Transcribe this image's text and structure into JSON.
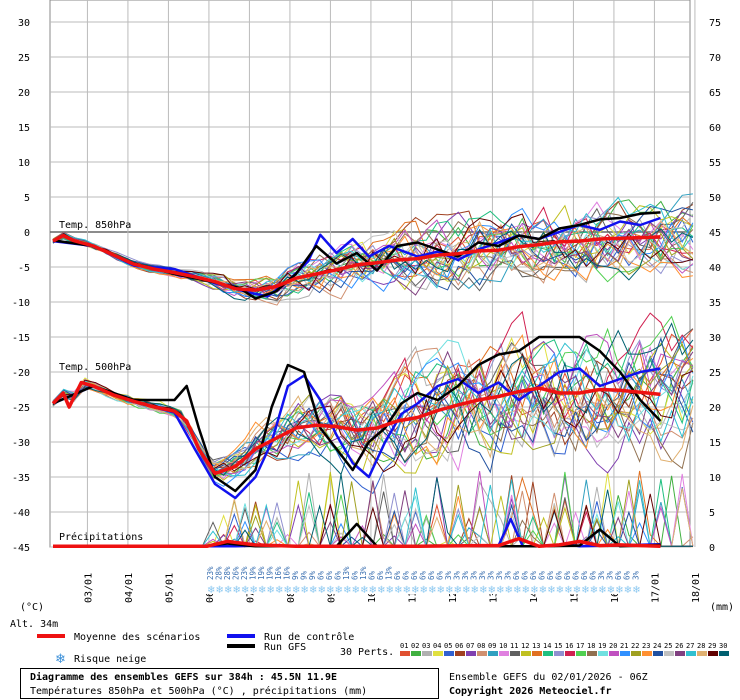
{
  "chart_data": {
    "type": "line",
    "title": "Diagramme des ensembles GEFS sur 384h : 45.5N 11.9E",
    "subtitle": "Températures 850hPa et 500hPa (°C) , précipitations (mm)",
    "run_label": "Ensemble GEFS du 02/01/2026 - 06Z",
    "copyright": "Copyright 2026 Meteociel.fr",
    "left_axis_unit": "(°C)",
    "right_axis_unit": "(mm)",
    "altitude": "Alt. 34m",
    "left_ticks": [
      30,
      25,
      20,
      15,
      10,
      5,
      0,
      -5,
      -10,
      -15,
      -20,
      -25,
      -30,
      -35,
      -40,
      -45
    ],
    "right_ticks": [
      75,
      70,
      65,
      60,
      55,
      50,
      45,
      40,
      35,
      30,
      25,
      20,
      15,
      10,
      5,
      0
    ],
    "x_labels": [
      "03/01",
      "04/01",
      "05/01",
      "06/01",
      "07/01",
      "08/01",
      "09/01",
      "10/01",
      "11/01",
      "12/01",
      "13/01",
      "14/01",
      "15/01",
      "16/01",
      "17/01",
      "18/01"
    ],
    "section_labels": {
      "t850": "Temp. 850hPa",
      "t500": "Temp. 500hPa",
      "precip": "Précipitations"
    },
    "snow_risk_percent": [
      "23%",
      "28%",
      "28%",
      "26%",
      "23%",
      "19%",
      "19%",
      "19%",
      "16%",
      "16%",
      "9%",
      "9%",
      "9%",
      "6%",
      "6%",
      "6%",
      "13%",
      "6%",
      "13%",
      "6%",
      "6%",
      "13%",
      "6%",
      "6%",
      "6%",
      "6%",
      "6%",
      "6%",
      "3%",
      "3%",
      "3%",
      "3%",
      "3%",
      "3%",
      "3%",
      "3%",
      "6%",
      "6%",
      "6%",
      "6%",
      "6%",
      "6%",
      "6%",
      "6%",
      "6%",
      "6%",
      "3%",
      "3%",
      "6%",
      "6%",
      "3%"
    ],
    "legend": {
      "mean": "Moyenne des scénarios",
      "control": "Run de contrôle",
      "gfs": "Run GFS",
      "snow": "Risque neige",
      "perts": "30 Perts."
    },
    "mean_t850": [
      [
        0,
        -1.3
      ],
      [
        0.25,
        -0.5
      ],
      [
        0.5,
        -1.2
      ],
      [
        1,
        -2
      ],
      [
        1.5,
        -3.3
      ],
      [
        2,
        -4.6
      ],
      [
        2.5,
        -5.3
      ],
      [
        3,
        -5.8
      ],
      [
        3.5,
        -6.4
      ],
      [
        4,
        -7.1
      ],
      [
        4.5,
        -8.1
      ],
      [
        5,
        -8.3
      ],
      [
        5.5,
        -7.8
      ],
      [
        6,
        -6.6
      ],
      [
        6.5,
        -6.0
      ],
      [
        7,
        -5.4
      ],
      [
        7.5,
        -4.7
      ],
      [
        8,
        -4.4
      ],
      [
        8.5,
        -4.0
      ],
      [
        9,
        -3.8
      ],
      [
        9.5,
        -3.3
      ],
      [
        10,
        -3.1
      ],
      [
        10.5,
        -2.7
      ],
      [
        11,
        -2.6
      ],
      [
        11.5,
        -2.1
      ],
      [
        12,
        -1.8
      ],
      [
        12.5,
        -1.4
      ],
      [
        13,
        -1.3
      ],
      [
        13.5,
        -1.0
      ],
      [
        14,
        -0.9
      ],
      [
        14.5,
        -0.8
      ],
      [
        15,
        -0.7
      ]
    ],
    "mean_t500": [
      [
        0,
        -24.5
      ],
      [
        0.25,
        -23.0
      ],
      [
        0.4,
        -25.0
      ],
      [
        0.7,
        -21.5
      ],
      [
        1,
        -22.0
      ],
      [
        1.5,
        -23.3
      ],
      [
        2,
        -24.2
      ],
      [
        2.5,
        -25.0
      ],
      [
        3,
        -25.6
      ],
      [
        3.3,
        -27
      ],
      [
        3.6,
        -31
      ],
      [
        4,
        -34.5
      ],
      [
        4.5,
        -33.5
      ],
      [
        5,
        -31.0
      ],
      [
        5.5,
        -29.5
      ],
      [
        6,
        -28.0
      ],
      [
        6.5,
        -27.6
      ],
      [
        7,
        -27.8
      ],
      [
        7.5,
        -28.3
      ],
      [
        8,
        -28.0
      ],
      [
        8.5,
        -27.0
      ],
      [
        9,
        -26.5
      ],
      [
        9.5,
        -25.5
      ],
      [
        10,
        -24.7
      ],
      [
        10.5,
        -24.0
      ],
      [
        11,
        -23.5
      ],
      [
        11.5,
        -22.8
      ],
      [
        12,
        -22.3
      ],
      [
        12.5,
        -23.0
      ],
      [
        13,
        -23.0
      ],
      [
        13.5,
        -22.5
      ],
      [
        14,
        -22.6
      ],
      [
        14.5,
        -22.9
      ],
      [
        15,
        -23.2
      ]
    ],
    "mean_precip": [
      [
        0,
        0.1
      ],
      [
        3.8,
        0.1
      ],
      [
        4.3,
        0.8
      ],
      [
        5,
        0.3
      ],
      [
        6,
        0.1
      ],
      [
        8,
        0.1
      ],
      [
        9,
        0.1
      ],
      [
        10.5,
        0.2
      ],
      [
        11,
        0.2
      ],
      [
        11.5,
        1.2
      ],
      [
        12,
        0.1
      ],
      [
        12.5,
        0.3
      ],
      [
        13,
        0.8
      ],
      [
        13.5,
        0.2
      ],
      [
        14,
        0.3
      ],
      [
        15,
        0.1
      ]
    ],
    "control_t850": [
      [
        0,
        -1.3
      ],
      [
        1,
        -2
      ],
      [
        2,
        -4.8
      ],
      [
        3,
        -5.3
      ],
      [
        4,
        -7.3
      ],
      [
        4.8,
        -8.6
      ],
      [
        5.3,
        -9.2
      ],
      [
        5.8,
        -7.0
      ],
      [
        6.3,
        -4.2
      ],
      [
        6.6,
        -0.4
      ],
      [
        7,
        -3.0
      ],
      [
        7.4,
        -1.0
      ],
      [
        7.8,
        -3.5
      ],
      [
        8.3,
        -2.0
      ],
      [
        9,
        -3.5
      ],
      [
        9.5,
        -2.8
      ],
      [
        10,
        -4.0
      ],
      [
        10.5,
        -2.5
      ],
      [
        11,
        -1.5
      ],
      [
        11.5,
        -0.5
      ],
      [
        12,
        -1.0
      ],
      [
        12.5,
        0.0
      ],
      [
        13,
        1.0
      ],
      [
        13.5,
        0.3
      ],
      [
        14,
        1.5
      ],
      [
        14.5,
        1.0
      ],
      [
        15,
        2.0
      ]
    ],
    "control_t500": [
      [
        0,
        -24.5
      ],
      [
        1,
        -22
      ],
      [
        2,
        -24.3
      ],
      [
        3,
        -25.8
      ],
      [
        3.5,
        -31
      ],
      [
        4,
        -36
      ],
      [
        4.5,
        -38
      ],
      [
        5,
        -35
      ],
      [
        5.4,
        -30
      ],
      [
        5.8,
        -22
      ],
      [
        6.2,
        -20.5
      ],
      [
        6.6,
        -24
      ],
      [
        7,
        -29
      ],
      [
        7.4,
        -33
      ],
      [
        7.8,
        -35
      ],
      [
        8.2,
        -30
      ],
      [
        8.6,
        -26
      ],
      [
        9,
        -24.5
      ],
      [
        9.5,
        -22
      ],
      [
        10,
        -21.0
      ],
      [
        10.5,
        -23
      ],
      [
        11,
        -21.5
      ],
      [
        11.5,
        -24
      ],
      [
        12,
        -22
      ],
      [
        12.5,
        -20
      ],
      [
        13,
        -19.5
      ],
      [
        13.5,
        -22
      ],
      [
        14,
        -21
      ],
      [
        14.5,
        -20
      ],
      [
        15,
        -19.5
      ]
    ],
    "control_precip": [
      [
        0,
        0.1
      ],
      [
        4.5,
        0.1
      ],
      [
        5,
        0.2
      ],
      [
        8,
        0.1
      ],
      [
        11,
        0.2
      ],
      [
        11.3,
        4.0
      ],
      [
        11.6,
        0.1
      ],
      [
        12,
        0.1
      ],
      [
        12.8,
        0.3
      ],
      [
        13,
        0.1
      ],
      [
        15,
        0.4
      ]
    ],
    "gfs_t850": [
      [
        0,
        -1.2
      ],
      [
        1,
        -2
      ],
      [
        2,
        -4.5
      ],
      [
        3,
        -6.0
      ],
      [
        4,
        -7.2
      ],
      [
        4.6,
        -8.0
      ],
      [
        5,
        -9.5
      ],
      [
        5.5,
        -8.5
      ],
      [
        6,
        -6.0
      ],
      [
        6.5,
        -2.0
      ],
      [
        7,
        -4.5
      ],
      [
        7.5,
        -3.0
      ],
      [
        8,
        -5.5
      ],
      [
        8.5,
        -2.0
      ],
      [
        9,
        -1.5
      ],
      [
        9.5,
        -2.5
      ],
      [
        10,
        -3.5
      ],
      [
        10.5,
        -1.5
      ],
      [
        11,
        -2.0
      ],
      [
        11.5,
        -0.5
      ],
      [
        12,
        -1.0
      ],
      [
        12.5,
        0.5
      ],
      [
        13,
        1.0
      ],
      [
        13.5,
        1.8
      ],
      [
        14,
        2.0
      ],
      [
        14.5,
        2.6
      ],
      [
        15,
        2.8
      ]
    ],
    "gfs_t500": [
      [
        0,
        -24.5
      ],
      [
        1,
        -22
      ],
      [
        2,
        -24
      ],
      [
        3,
        -24
      ],
      [
        3.3,
        -22
      ],
      [
        3.6,
        -28
      ],
      [
        4,
        -35
      ],
      [
        4.5,
        -37
      ],
      [
        5,
        -34
      ],
      [
        5.4,
        -25
      ],
      [
        5.8,
        -19
      ],
      [
        6.2,
        -20
      ],
      [
        6.6,
        -28
      ],
      [
        7,
        -31
      ],
      [
        7.4,
        -34
      ],
      [
        7.8,
        -30
      ],
      [
        8.2,
        -28
      ],
      [
        8.6,
        -24.5
      ],
      [
        9,
        -23
      ],
      [
        9.5,
        -24
      ],
      [
        10,
        -22
      ],
      [
        10.5,
        -19
      ],
      [
        11,
        -17.5
      ],
      [
        11.5,
        -17
      ],
      [
        12,
        -15
      ],
      [
        12.5,
        -15
      ],
      [
        13,
        -15
      ],
      [
        13.5,
        -17
      ],
      [
        14,
        -20
      ],
      [
        14.5,
        -24
      ],
      [
        15,
        -27
      ]
    ],
    "gfs_precip": [
      [
        0,
        0.1
      ],
      [
        3.7,
        0.1
      ],
      [
        4.3,
        0.5
      ],
      [
        5,
        0.1
      ],
      [
        7,
        0.1
      ],
      [
        7.5,
        3.3
      ],
      [
        8,
        0.1
      ],
      [
        9.5,
        0.2
      ],
      [
        10,
        0.1
      ],
      [
        12,
        0.1
      ],
      [
        13,
        0.2
      ],
      [
        13.5,
        2.5
      ],
      [
        14,
        0.1
      ],
      [
        15,
        0.3
      ]
    ],
    "perturbation_colors": [
      "#e05030",
      "#40b040",
      "#b0b0b0",
      "#e0e040",
      "#3060d0",
      "#a04020",
      "#8040b0",
      "#d09070",
      "#30a0c0",
      "#e080e0",
      "#606060",
      "#c0c020",
      "#e07020",
      "#20c080",
      "#9090d0",
      "#d02050",
      "#50d050",
      "#907050",
      "#70e0e0",
      "#c050c0",
      "#3090ff",
      "#a0a020",
      "#ff9030",
      "#2050a0",
      "#c0c0c0",
      "#804080",
      "#30c0d0",
      "#e0b070",
      "#600000",
      "#006070"
    ],
    "perturbation_labels": [
      "01",
      "02",
      "03",
      "04",
      "05",
      "06",
      "07",
      "08",
      "09",
      "10",
      "11",
      "12",
      "13",
      "14",
      "15",
      "16",
      "17",
      "18",
      "19",
      "20",
      "21",
      "22",
      "23",
      "24",
      "25",
      "26",
      "27",
      "28",
      "29",
      "30"
    ],
    "colors": {
      "mean": "#ee1111",
      "control": "#1111ee",
      "gfs": "#000000",
      "snow": "#8cc8f0",
      "grid": "#aaaaaa"
    }
  }
}
